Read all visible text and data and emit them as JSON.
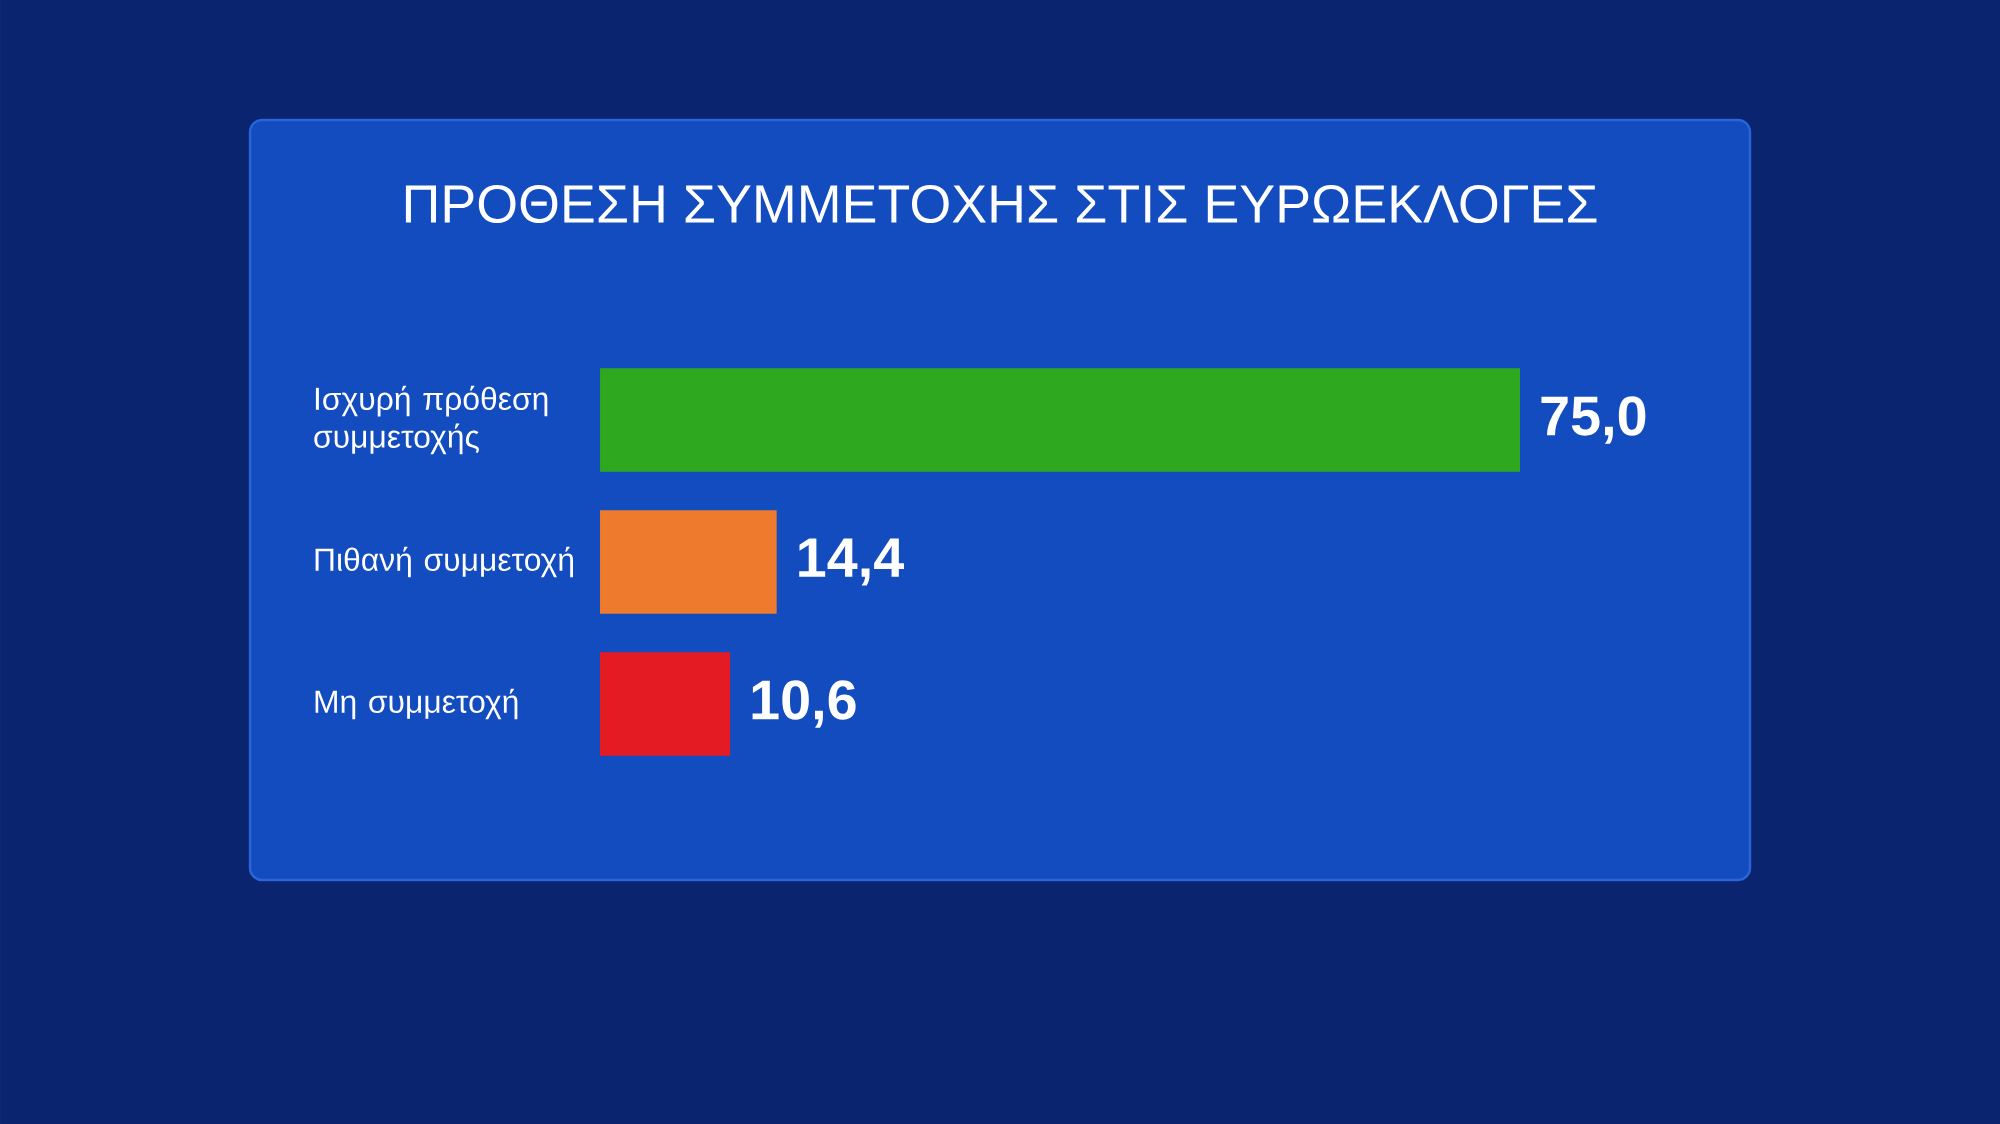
{
  "chart_data": {
    "type": "bar",
    "orientation": "horizontal",
    "title": "ΠΡΟΘΕΣΗ ΣΥΜΜΕΤΟΧΗΣ ΣΤΙΣ ΕΥΡΩΕΚΛΟΓΕΣ",
    "categories": [
      "Ισχυρή πρόθεση συμμετοχής",
      "Πιθανή συμμετοχή",
      "Μη συμμετοχή"
    ],
    "values": [
      75.0,
      14.4,
      10.6
    ],
    "colors": [
      "#2ea81f",
      "#ee7a2e",
      "#e41b23"
    ],
    "value_labels": [
      "75,0",
      "14,4",
      "10,6"
    ],
    "tick_labels": "y"
  }
}
